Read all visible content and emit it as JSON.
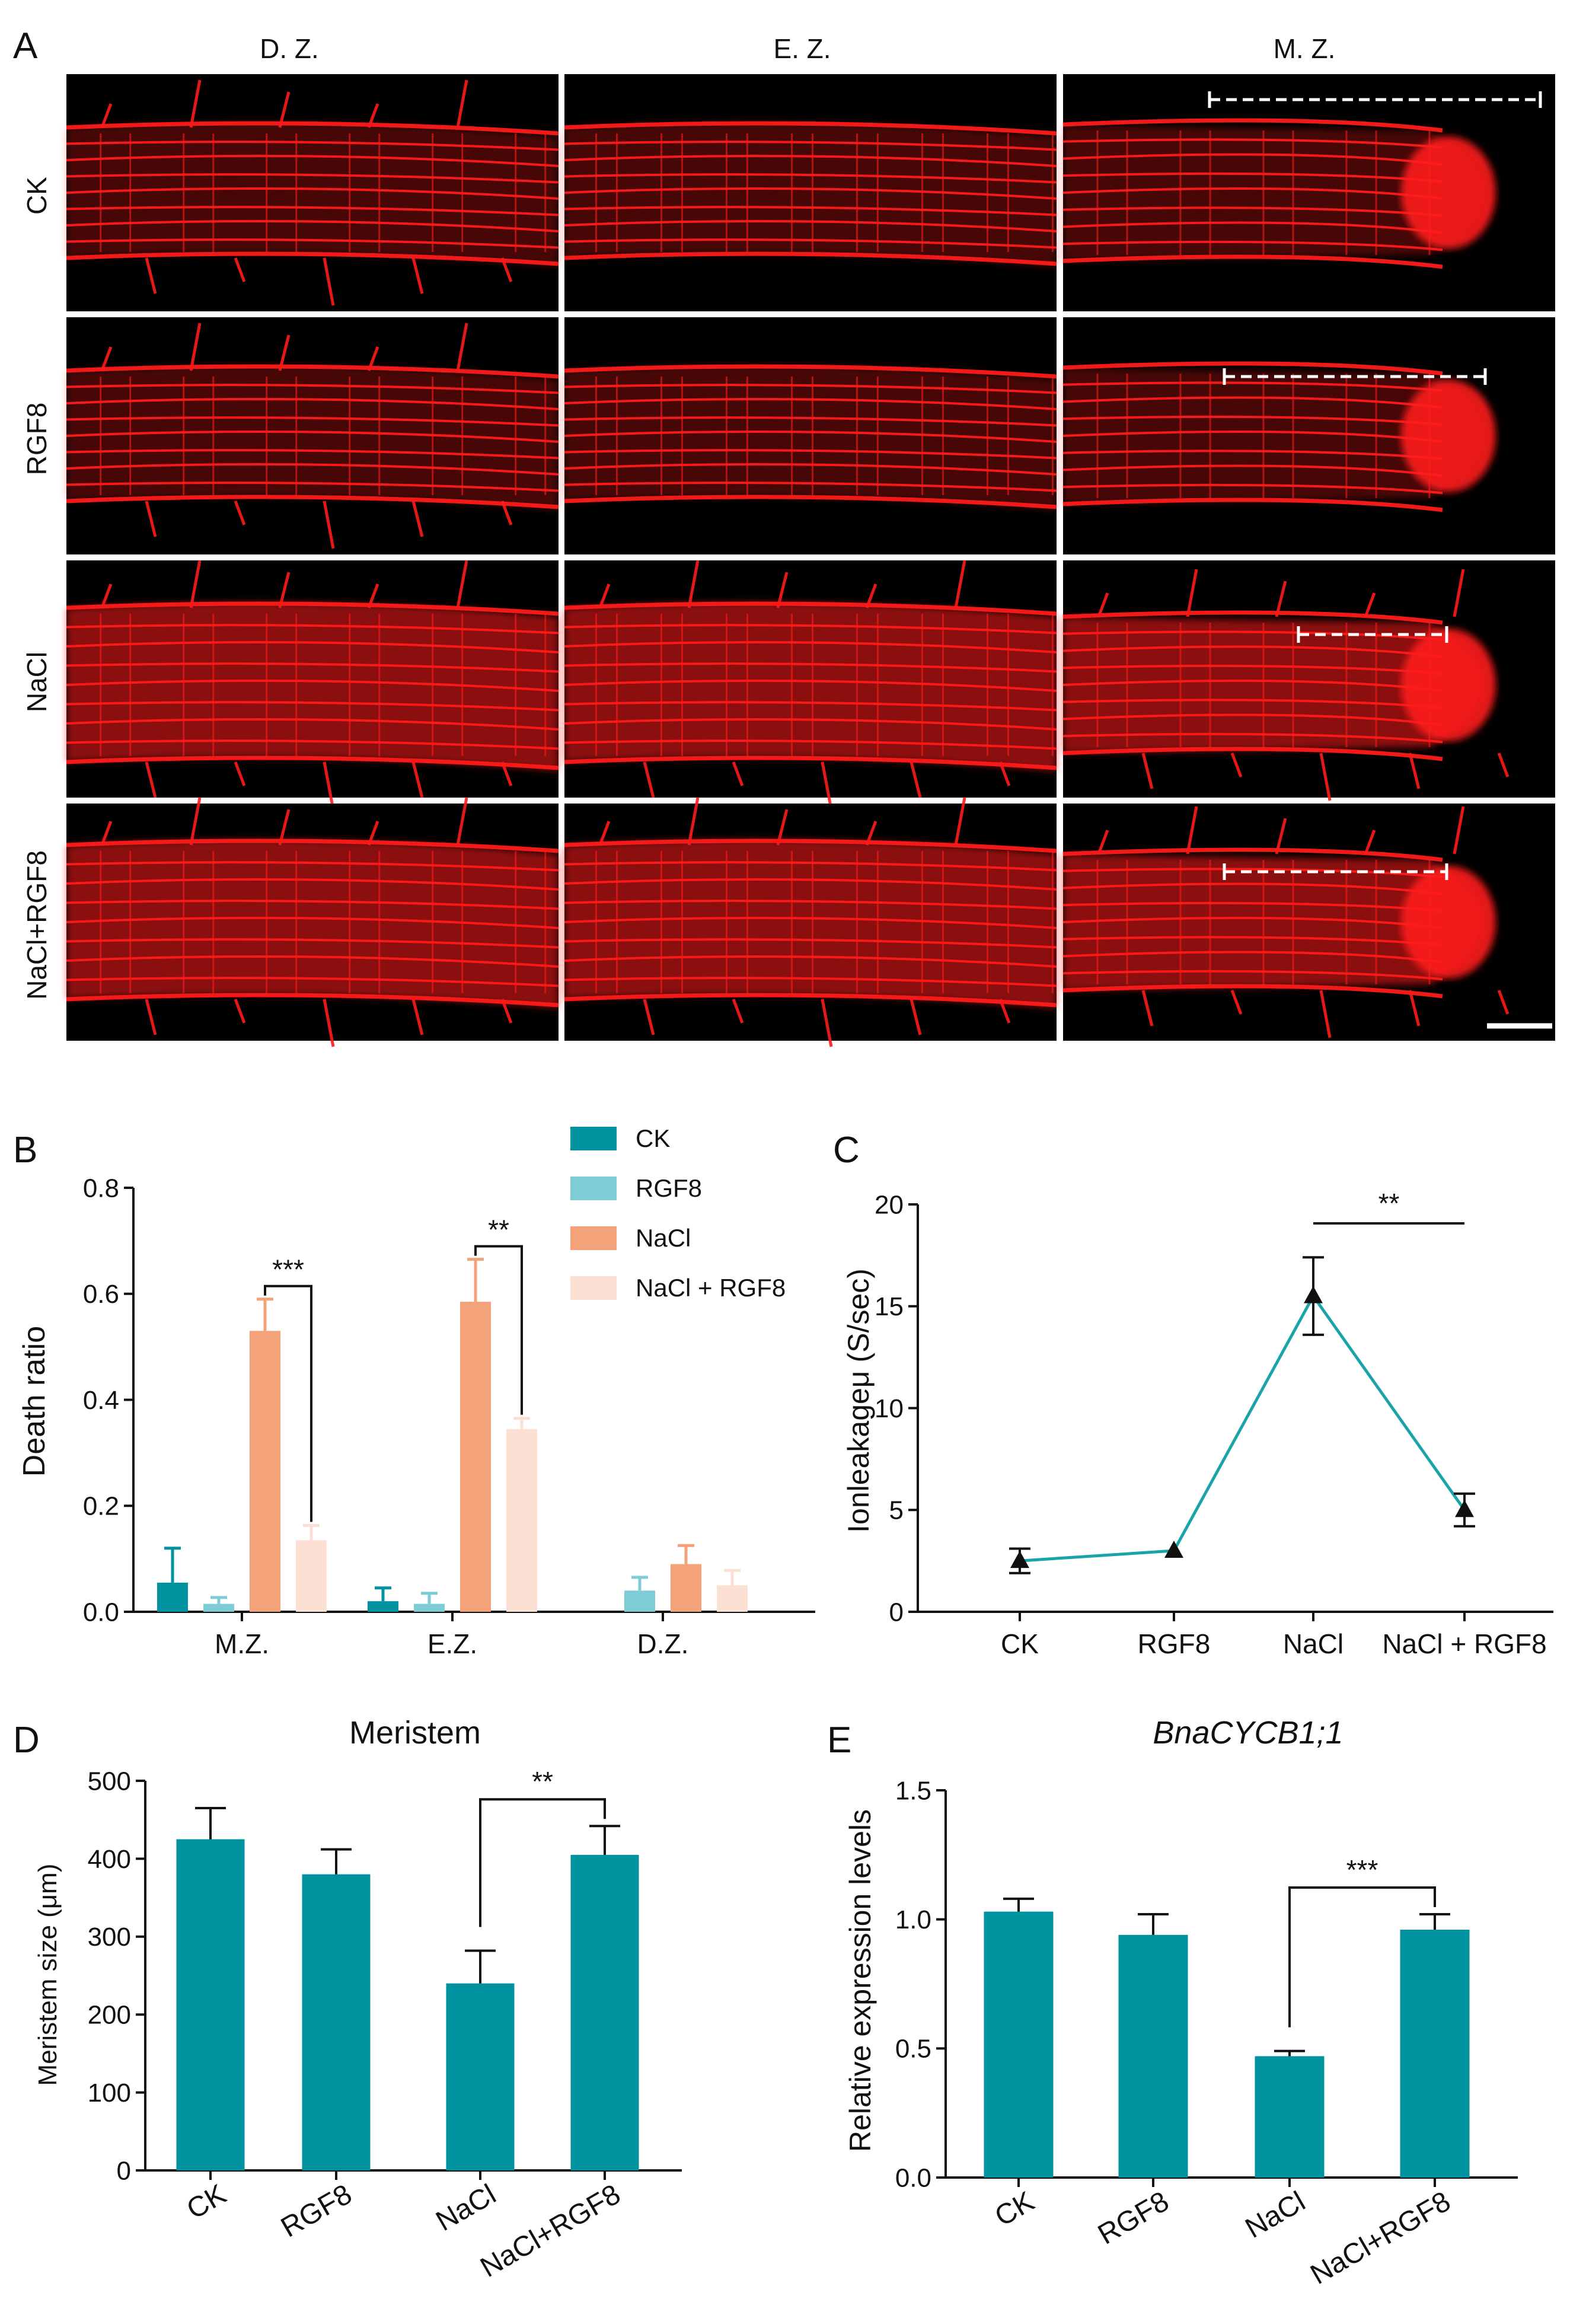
{
  "panel_a": {
    "label": "A",
    "columns": [
      "D. Z.",
      "E. Z.",
      "M. Z."
    ],
    "rows": [
      "CK",
      "RGF8",
      "NaCl",
      "NaCl+RGF8"
    ]
  },
  "colors": {
    "ck": "#00929e",
    "rgf8": "#7ecdd6",
    "nacl": "#f4a27a",
    "nacl_rgf8": "#fde0d4",
    "bar": "#00929e",
    "line": "#1aa3a8",
    "microscopy_red": "#ff1a1a"
  },
  "chart_data": [
    {
      "id": "B",
      "type": "bar",
      "panel_label": "B",
      "title": "",
      "xlabel": "",
      "ylabel": "Death ratio",
      "ylim": [
        0,
        0.8
      ],
      "yticks": [
        "0.0",
        "0.2",
        "0.4",
        "0.6",
        "0.8"
      ],
      "categories": [
        "M.Z.",
        "E.Z.",
        "D.Z."
      ],
      "series": [
        {
          "name": "CK",
          "values": [
            0.055,
            0.02,
            0.0
          ],
          "errors": [
            0.065,
            0.025,
            0.0
          ]
        },
        {
          "name": "RGF8",
          "values": [
            0.015,
            0.015,
            0.04
          ],
          "errors": [
            0.012,
            0.02,
            0.025
          ]
        },
        {
          "name": "NaCl",
          "values": [
            0.53,
            0.585,
            0.09
          ],
          "errors": [
            0.06,
            0.08,
            0.035
          ]
        },
        {
          "name": "NaCl + RGF8",
          "values": [
            0.135,
            0.345,
            0.05
          ],
          "errors": [
            0.028,
            0.02,
            0.028
          ]
        }
      ],
      "significance": [
        {
          "label": "***",
          "category": "M.Z."
        },
        {
          "label": "**",
          "category": "E.Z."
        }
      ],
      "legend": "top-right"
    },
    {
      "id": "C",
      "type": "line",
      "panel_label": "C",
      "title": "",
      "ylabel": "Ionleakageμ (S/sec)",
      "ylim": [
        0,
        20
      ],
      "yticks": [
        "0",
        "5",
        "10",
        "15",
        "20"
      ],
      "categories": [
        "CK",
        "RGF8",
        "NaCl",
        "NaCl + RGF8"
      ],
      "values": [
        2.5,
        3.0,
        15.5,
        5.0
      ],
      "errors": [
        0.6,
        0.1,
        1.9,
        0.8
      ],
      "significance": [
        {
          "label": "**",
          "from": "NaCl",
          "to": "NaCl + RGF8"
        }
      ]
    },
    {
      "id": "D",
      "type": "bar",
      "panel_label": "D",
      "title": "Meristem",
      "ylabel": "Meristem size (μm)",
      "ylim": [
        0,
        500
      ],
      "yticks": [
        "0",
        "100",
        "200",
        "300",
        "400",
        "500"
      ],
      "categories": [
        "CK",
        "RGF8",
        "NaCl",
        "NaCl+RGF8"
      ],
      "values": [
        425,
        380,
        240,
        405
      ],
      "errors": [
        40,
        32,
        42,
        37
      ],
      "significance": [
        {
          "label": "**",
          "from": "NaCl",
          "to": "NaCl+RGF8"
        }
      ]
    },
    {
      "id": "E",
      "type": "bar",
      "panel_label": "E",
      "title": "BnaCYCB1;1",
      "ylabel": "Relative expression levels",
      "ylim": [
        0,
        1.5
      ],
      "yticks": [
        "0.0",
        "0.5",
        "1.0",
        "1.5"
      ],
      "categories": [
        "CK",
        "RGF8",
        "NaCl",
        "NaCl+RGF8"
      ],
      "values": [
        1.03,
        0.94,
        0.47,
        0.96
      ],
      "errors": [
        0.05,
        0.08,
        0.02,
        0.06
      ],
      "significance": [
        {
          "label": "***",
          "from": "NaCl",
          "to": "NaCl+RGF8"
        }
      ]
    }
  ]
}
